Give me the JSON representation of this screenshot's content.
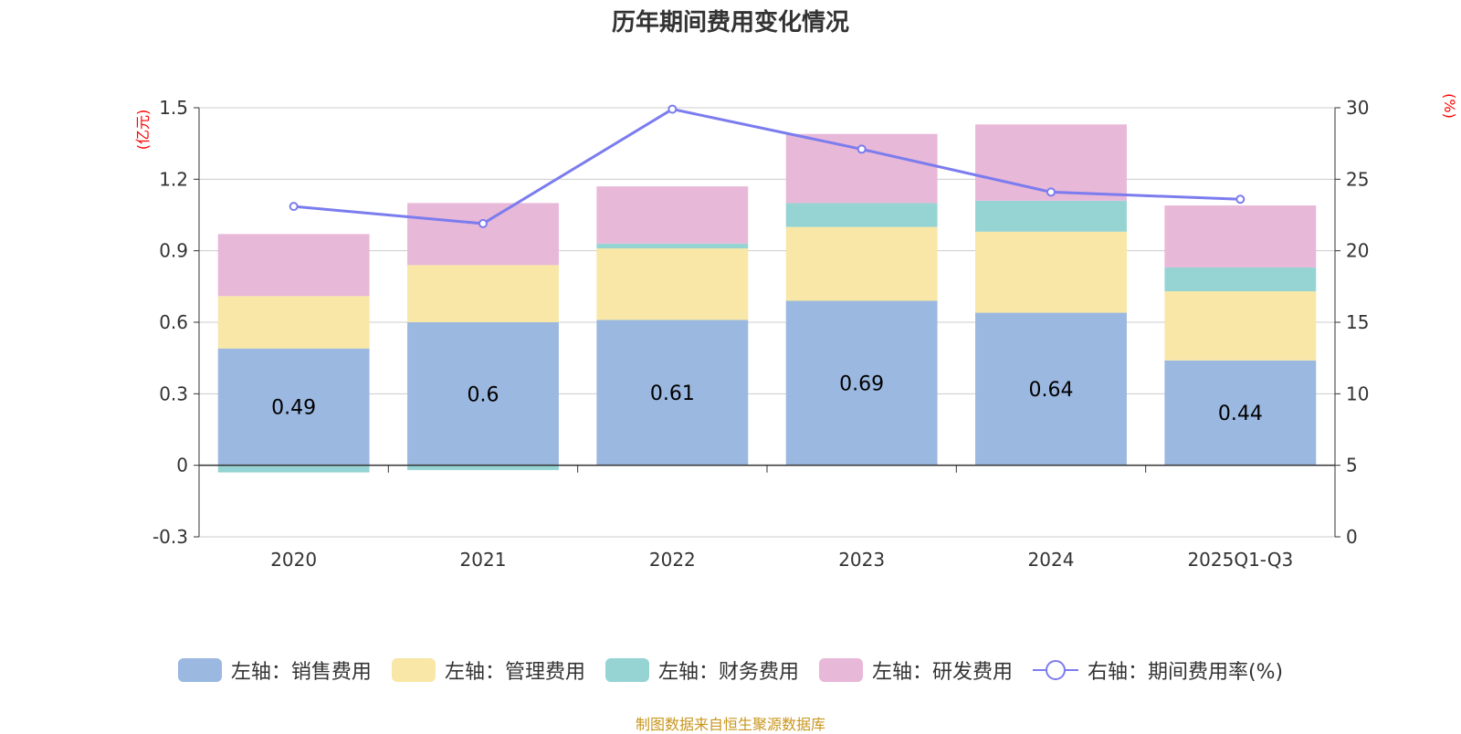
{
  "chart_data": {
    "type": "bar",
    "title": "历年期间费用变化情况",
    "categories": [
      "2020",
      "2021",
      "2022",
      "2023",
      "2024",
      "2025Q1-Q3"
    ],
    "left_axis": {
      "unit_label": "(亿元)",
      "ylim": [
        -0.3,
        1.5
      ],
      "ticks": [
        -0.3,
        0,
        0.3,
        0.6,
        0.9,
        1.2,
        1.5
      ],
      "tick_labels": [
        "-0.3",
        "0",
        "0.3",
        "0.6",
        "0.9",
        "1.2",
        "1.5"
      ]
    },
    "right_axis": {
      "unit_label": "(%)",
      "ylim": [
        0,
        30
      ],
      "ticks": [
        0,
        5,
        10,
        15,
        20,
        25,
        30
      ],
      "tick_labels": [
        "0",
        "5",
        "10",
        "15",
        "20",
        "25",
        "30"
      ]
    },
    "series": [
      {
        "name": "左轴：销售费用",
        "type": "bar",
        "axis": "left",
        "color": "#9bb8e0",
        "values": [
          0.49,
          0.6,
          0.61,
          0.69,
          0.64,
          0.44
        ],
        "show_labels": true,
        "data_labels": [
          "0.49",
          "0.6",
          "0.61",
          "0.69",
          "0.64",
          "0.44"
        ]
      },
      {
        "name": "左轴：管理费用",
        "type": "bar",
        "axis": "left",
        "color": "#f8e7a6",
        "values": [
          0.22,
          0.24,
          0.3,
          0.31,
          0.34,
          0.29
        ]
      },
      {
        "name": "左轴：财务费用",
        "type": "bar",
        "axis": "left",
        "color": "#96d4d4",
        "values": [
          -0.03,
          -0.02,
          0.02,
          0.1,
          0.13,
          0.1
        ]
      },
      {
        "name": "左轴：研发费用",
        "type": "bar",
        "axis": "left",
        "color": "#e8b8d8",
        "values": [
          0.26,
          0.26,
          0.24,
          0.29,
          0.32,
          0.26
        ]
      },
      {
        "name": "右轴：期间费用率(%)",
        "type": "line",
        "axis": "right",
        "color": "#7b7cee",
        "values": [
          23.1,
          21.9,
          29.9,
          27.1,
          24.1,
          23.6
        ]
      }
    ],
    "stacked": true,
    "grid": true,
    "legend_position": "bottom"
  },
  "source_note": "制图数据来自恒生聚源数据库"
}
